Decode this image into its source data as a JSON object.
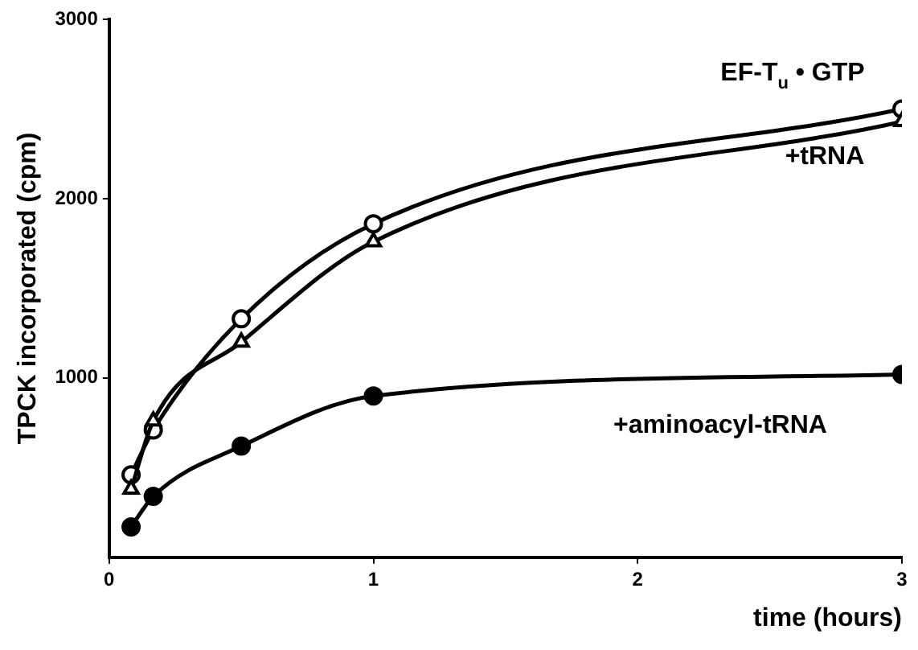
{
  "chart_data": {
    "type": "line",
    "xlabel": "time (hours)",
    "ylabel": "TPCK incorporated (cpm)",
    "x": [
      0.083,
      0.167,
      0.5,
      1,
      3
    ],
    "series": [
      {
        "name": "EF-T$_{u}$ • GTP",
        "color": "#000000",
        "marker": "circle",
        "values": [
          460,
          710,
          1330,
          1860,
          2500
        ]
      },
      {
        "name": "+tRNA",
        "color": "#000000",
        "marker": "triangle",
        "values": [
          380,
          760,
          1200,
          1760,
          2430
        ]
      },
      {
        "name": "+aminoacyl-tRNA",
        "color": "#000000",
        "marker": "circle",
        "values": [
          170,
          340,
          620,
          900,
          1020
        ]
      }
    ],
    "xlim": [
      0,
      3
    ],
    "xticks": [
      0,
      1,
      2,
      3
    ],
    "ylim": [
      0,
      3000
    ],
    "yticks": [
      1000,
      2000,
      3000
    ],
    "grid": false,
    "legend": false,
    "line_style": "solid"
  }
}
